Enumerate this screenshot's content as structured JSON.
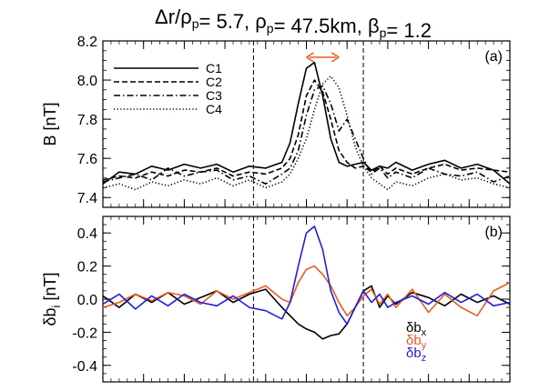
{
  "chart_data": [
    {
      "panel": "(a)",
      "type": "line",
      "title": "Δr/ρp=   5.7, ρp=   47.5km, βp= 1.2",
      "ylabel": "B [nT]",
      "ylim": [
        7.35,
        8.2
      ],
      "xlim": [
        0,
        100
      ],
      "yticks": [
        7.4,
        7.6,
        7.8,
        8.0,
        8.2
      ],
      "ytick_labels": [
        "7.4",
        "7.6",
        "7.8",
        "8.0",
        "8.2"
      ],
      "vlines_x": [
        37,
        64
      ],
      "arrow_x": [
        50,
        58
      ],
      "legend": {
        "placement": "top-left",
        "entries": [
          "C1",
          "C2",
          "C3",
          "C4"
        ]
      },
      "x": [
        0,
        4,
        8,
        12,
        16,
        20,
        24,
        28,
        32,
        36,
        40,
        44,
        46,
        48,
        50,
        52,
        54,
        56,
        58,
        60,
        62,
        64,
        66,
        68,
        70,
        72,
        76,
        80,
        84,
        88,
        92,
        96,
        100
      ],
      "series": [
        {
          "name": "C1",
          "style": "solid",
          "color": "#000000",
          "values": [
            7.47,
            7.53,
            7.52,
            7.56,
            7.54,
            7.57,
            7.55,
            7.57,
            7.53,
            7.56,
            7.55,
            7.58,
            7.68,
            7.88,
            8.06,
            8.09,
            7.92,
            7.7,
            7.58,
            7.56,
            7.57,
            7.58,
            7.54,
            7.56,
            7.55,
            7.58,
            7.54,
            7.57,
            7.59,
            7.55,
            7.57,
            7.54,
            7.47
          ]
        },
        {
          "name": "C2",
          "style": "dashed",
          "color": "#000000",
          "values": [
            7.49,
            7.51,
            7.5,
            7.53,
            7.51,
            7.54,
            7.53,
            7.55,
            7.51,
            7.53,
            7.52,
            7.55,
            7.6,
            7.72,
            7.92,
            8.0,
            7.94,
            7.8,
            7.64,
            7.58,
            7.55,
            7.56,
            7.53,
            7.56,
            7.52,
            7.55,
            7.52,
            7.55,
            7.57,
            7.54,
            7.55,
            7.54,
            7.53
          ]
        },
        {
          "name": "C3",
          "style": "dashdot",
          "color": "#000000",
          "values": [
            7.48,
            7.5,
            7.52,
            7.49,
            7.55,
            7.51,
            7.53,
            7.54,
            7.49,
            7.51,
            7.47,
            7.52,
            7.55,
            7.64,
            7.82,
            7.95,
            7.97,
            7.88,
            7.74,
            7.8,
            7.7,
            7.6,
            7.52,
            7.55,
            7.5,
            7.53,
            7.5,
            7.55,
            7.52,
            7.51,
            7.53,
            7.48,
            7.51
          ]
        },
        {
          "name": "C4",
          "style": "dotted",
          "color": "#000000",
          "values": [
            7.45,
            7.47,
            7.44,
            7.48,
            7.46,
            7.49,
            7.47,
            7.5,
            7.46,
            7.49,
            7.45,
            7.48,
            7.52,
            7.6,
            7.7,
            7.85,
            7.98,
            8.02,
            7.96,
            7.82,
            7.66,
            7.56,
            7.5,
            7.47,
            7.44,
            7.48,
            7.46,
            7.5,
            7.52,
            7.49,
            7.5,
            7.47,
            7.45
          ]
        }
      ]
    },
    {
      "panel": "(b)",
      "type": "line",
      "ylabel": "δbi [nT]",
      "ylabel_main": "δb",
      "ylabel_sub": "i",
      "ylabel_unit": " [nT]",
      "ylim": [
        -0.5,
        0.5
      ],
      "xlim": [
        0,
        100
      ],
      "yticks": [
        -0.4,
        -0.2,
        0.0,
        0.2,
        0.4
      ],
      "ytick_labels": [
        "-0.4",
        "-0.2",
        "0.0",
        "0.2",
        "0.4"
      ],
      "vlines_x": [
        37,
        64
      ],
      "components": [
        {
          "label": "δbx",
          "main": "δb",
          "sub": "x",
          "color": "#000000"
        },
        {
          "label": "δby",
          "main": "δb",
          "sub": "y",
          "color": "#ef5a1f"
        },
        {
          "label": "δbz",
          "main": "δb",
          "sub": "z",
          "color": "#1f1fe0"
        }
      ],
      "x": [
        0,
        4,
        8,
        12,
        16,
        20,
        24,
        28,
        32,
        36,
        40,
        44,
        46,
        48,
        50,
        52,
        54,
        56,
        58,
        60,
        62,
        64,
        66,
        68,
        70,
        72,
        76,
        80,
        84,
        88,
        92,
        96,
        100
      ],
      "series": [
        {
          "name": "δbx",
          "color": "#000000",
          "values": [
            0.02,
            -0.05,
            0.03,
            -0.02,
            0.04,
            -0.03,
            0.01,
            0.05,
            -0.02,
            0.03,
            0.06,
            -0.05,
            -0.1,
            -0.15,
            -0.18,
            -0.2,
            -0.24,
            -0.22,
            -0.21,
            -0.15,
            -0.05,
            0.05,
            0.08,
            -0.05,
            0.02,
            -0.03,
            0.04,
            0.01,
            -0.04,
            0.03,
            -0.02,
            0.02,
            -0.03
          ]
        },
        {
          "name": "δby",
          "color": "#ef5a1f",
          "values": [
            -0.05,
            -0.02,
            0.03,
            -0.01,
            0.04,
            0.02,
            -0.03,
            0.05,
            0.0,
            0.04,
            0.08,
            0.0,
            -0.02,
            0.1,
            0.18,
            0.2,
            0.15,
            0.08,
            -0.02,
            -0.1,
            -0.05,
            0.02,
            0.06,
            -0.03,
            0.03,
            -0.05,
            0.06,
            -0.08,
            0.03,
            -0.05,
            -0.1,
            0.05,
            0.1
          ]
        },
        {
          "name": "δbz",
          "color": "#1f1fe0",
          "values": [
            -0.03,
            0.03,
            -0.06,
            0.02,
            -0.04,
            0.03,
            -0.02,
            -0.04,
            0.02,
            -0.05,
            -0.07,
            -0.12,
            -0.02,
            0.2,
            0.4,
            0.44,
            0.3,
            0.05,
            -0.08,
            -0.15,
            -0.05,
            0.05,
            -0.02,
            0.03,
            -0.05,
            -0.02,
            0.02,
            -0.03,
            0.04,
            -0.02,
            0.03,
            -0.04,
            -0.02
          ]
        }
      ]
    }
  ]
}
